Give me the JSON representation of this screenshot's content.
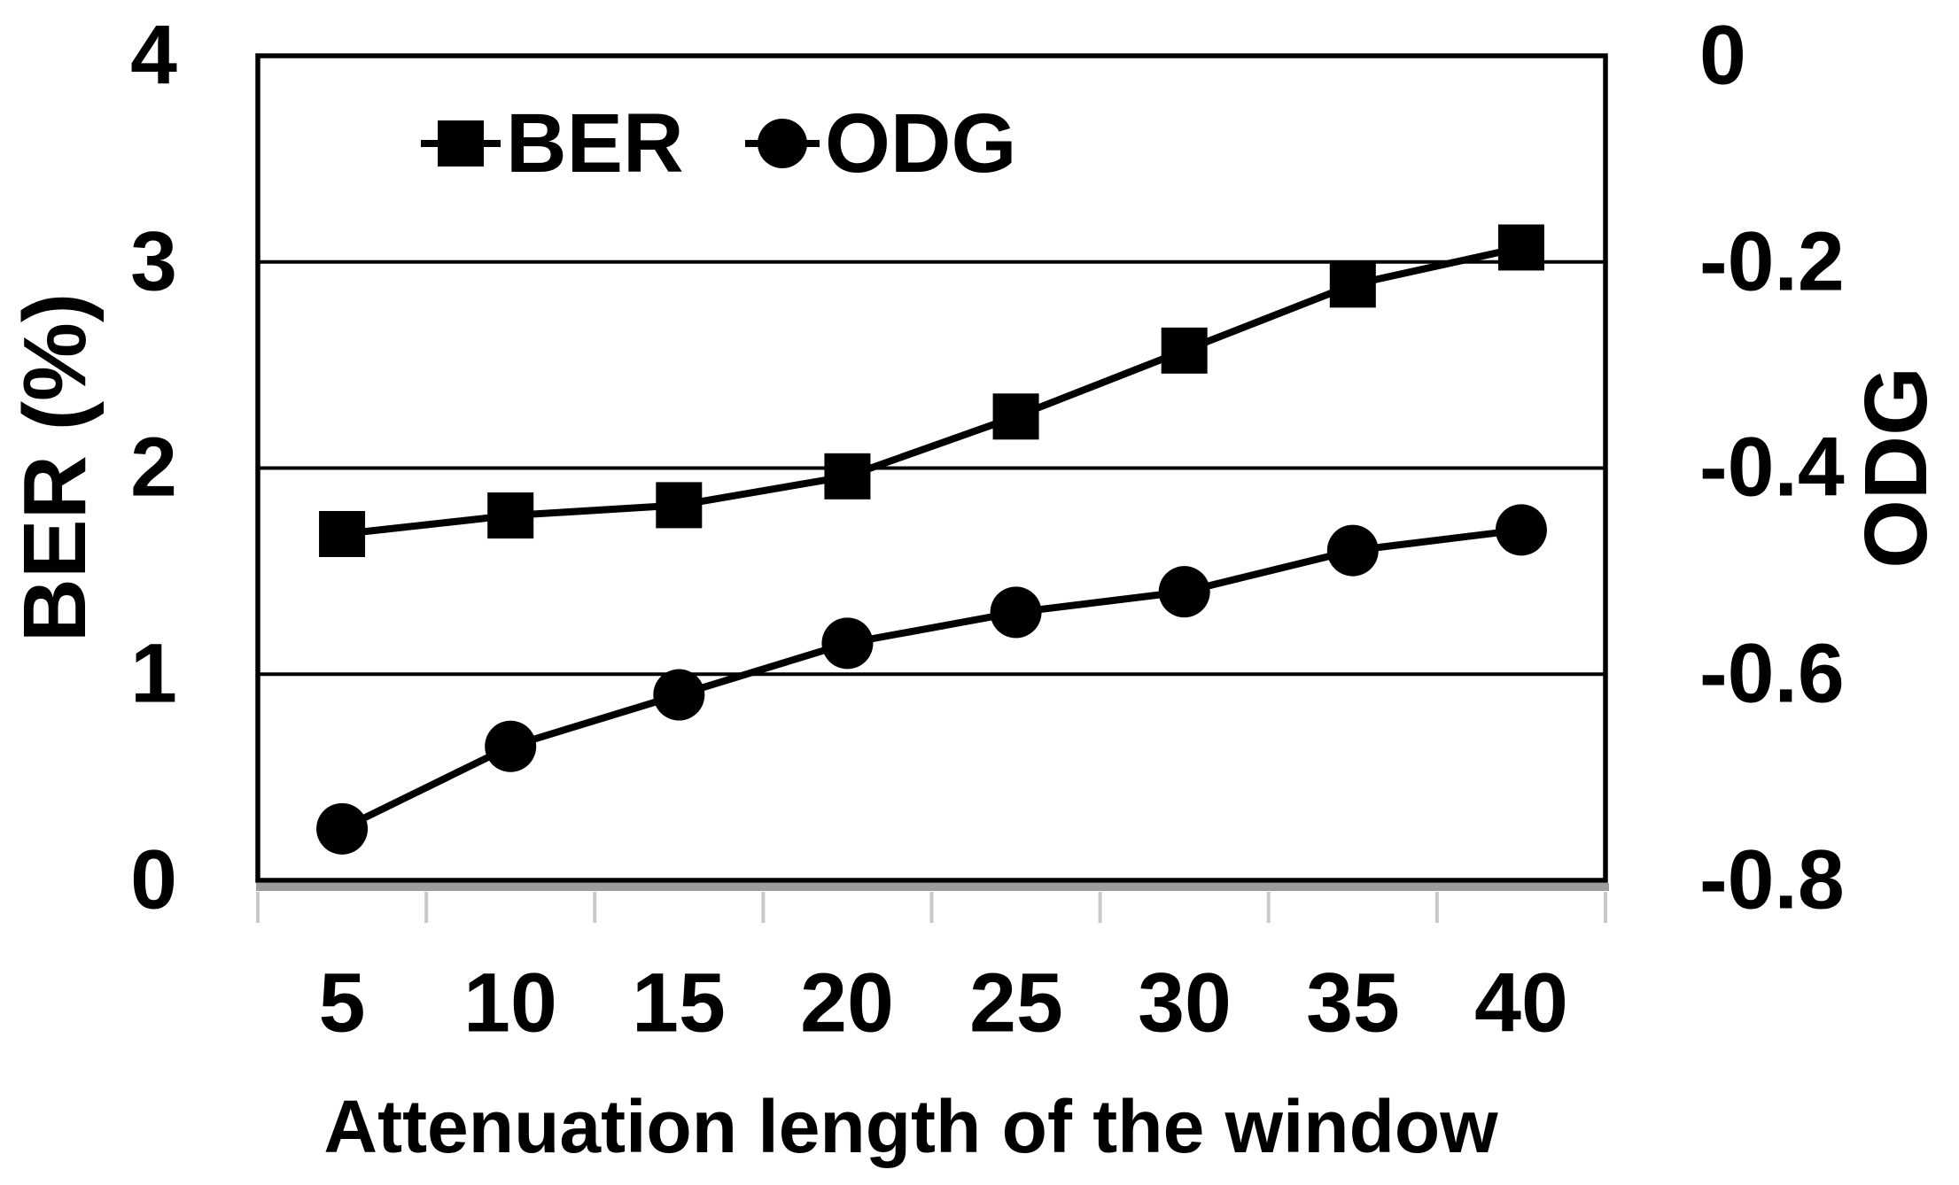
{
  "chart_data": {
    "type": "line",
    "dual_axis": true,
    "title": "",
    "x": [
      5,
      10,
      15,
      20,
      25,
      30,
      35,
      40
    ],
    "x_axis": {
      "label": "Attenuation length of the window",
      "tick_labels": [
        "5",
        "10",
        "15",
        "20",
        "25",
        "30",
        "35",
        "40"
      ]
    },
    "left_axis": {
      "label": "BER (%)",
      "range": [
        0,
        4
      ],
      "tick_values": [
        4,
        3,
        2,
        1,
        0
      ],
      "tick_labels": [
        "4",
        "3",
        "2",
        "1",
        "0"
      ]
    },
    "right_axis": {
      "label": "ODG",
      "range": [
        -0.8,
        0
      ],
      "tick_values": [
        0,
        -0.2,
        -0.4,
        -0.6,
        -0.8
      ],
      "tick_labels": [
        "0",
        "-0.2",
        "-0.4",
        "-0.6",
        "-0.8"
      ]
    },
    "series": [
      {
        "name": "BER",
        "axis": "left",
        "marker": "square",
        "values": [
          1.68,
          1.77,
          1.82,
          1.96,
          2.25,
          2.57,
          2.89,
          3.07
        ]
      },
      {
        "name": "ODG",
        "axis": "right",
        "marker": "circle",
        "values": [
          -0.75,
          -0.67,
          -0.62,
          -0.57,
          -0.54,
          -0.52,
          -0.48,
          -0.46
        ]
      }
    ],
    "legend": {
      "position": "top-center-inside",
      "frame": false
    },
    "grid": true,
    "colors": {
      "line": "#000000",
      "marker": "#000000",
      "background": "#ffffff",
      "axis_shadow": "#9c9c9c",
      "minor_tick": "#c9c9c9"
    }
  }
}
